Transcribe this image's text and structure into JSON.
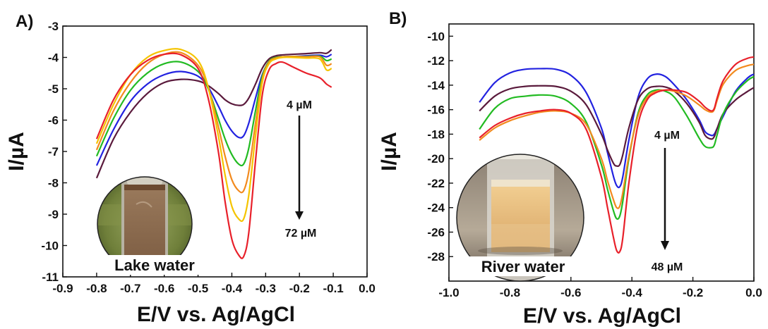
{
  "panels": [
    {
      "panel_label": "A)",
      "photo_label": "Lake water",
      "start_annotation": "4 µM",
      "end_annotation": "72 µM"
    },
    {
      "panel_label": "B)",
      "photo_label": "River water",
      "start_annotation": "4 µM",
      "end_annotation": "48 µM"
    }
  ],
  "chart_data": [
    {
      "type": "line",
      "title": "",
      "xlabel": "E/V vs. Ag/AgCl",
      "ylabel": "I/µA",
      "xlim": [
        -0.9,
        0.0
      ],
      "ylim": [
        -11,
        -3
      ],
      "xticks": [
        "-0.9",
        "-0.8",
        "-0.7",
        "-0.6",
        "-0.5",
        "-0.4",
        "-0.3",
        "-0.2",
        "-0.1",
        "0.0"
      ],
      "yticks": [
        "-3",
        "-4",
        "-5",
        "-6",
        "-7",
        "-8",
        "-9",
        "-10",
        "-11"
      ],
      "grid": false,
      "series": [
        {
          "color": "#5a1a3c",
          "x": [
            -0.8,
            -0.75,
            -0.7,
            -0.65,
            -0.6,
            -0.55,
            -0.5,
            -0.47,
            -0.44,
            -0.42,
            -0.4,
            -0.38,
            -0.365,
            -0.35,
            -0.33,
            -0.31,
            -0.29,
            -0.27,
            -0.25,
            -0.22,
            -0.18,
            -0.14,
            -0.12,
            -0.105
          ],
          "y": [
            -7.85,
            -6.6,
            -5.75,
            -5.15,
            -4.8,
            -4.7,
            -4.75,
            -4.9,
            -5.15,
            -5.35,
            -5.48,
            -5.53,
            -5.5,
            -5.3,
            -4.85,
            -4.35,
            -4.05,
            -3.95,
            -3.92,
            -3.9,
            -3.88,
            -3.85,
            -3.87,
            -3.75
          ]
        },
        {
          "color": "#2222e0",
          "x": [
            -0.8,
            -0.75,
            -0.7,
            -0.65,
            -0.6,
            -0.55,
            -0.5,
            -0.47,
            -0.44,
            -0.42,
            -0.4,
            -0.38,
            -0.365,
            -0.35,
            -0.33,
            -0.31,
            -0.29,
            -0.27,
            -0.25,
            -0.22,
            -0.18,
            -0.14,
            -0.12,
            -0.105
          ],
          "y": [
            -7.45,
            -6.3,
            -5.4,
            -4.85,
            -4.55,
            -4.45,
            -4.6,
            -4.95,
            -5.55,
            -6.0,
            -6.35,
            -6.55,
            -6.5,
            -6.1,
            -5.3,
            -4.55,
            -4.15,
            -4.02,
            -3.98,
            -3.97,
            -3.95,
            -3.93,
            -3.98,
            -3.9
          ]
        },
        {
          "color": "#22bb22",
          "x": [
            -0.8,
            -0.75,
            -0.7,
            -0.65,
            -0.6,
            -0.55,
            -0.5,
            -0.47,
            -0.44,
            -0.42,
            -0.4,
            -0.38,
            -0.365,
            -0.35,
            -0.33,
            -0.31,
            -0.29,
            -0.27,
            -0.25,
            -0.22,
            -0.18,
            -0.14,
            -0.12,
            -0.105
          ],
          "y": [
            -7.15,
            -5.95,
            -5.05,
            -4.5,
            -4.2,
            -4.15,
            -4.45,
            -5.0,
            -5.95,
            -6.6,
            -7.1,
            -7.4,
            -7.4,
            -6.9,
            -5.7,
            -4.6,
            -4.12,
            -4.0,
            -3.98,
            -3.97,
            -3.97,
            -3.96,
            -4.1,
            -4.05
          ]
        },
        {
          "color": "#f28a1e",
          "x": [
            -0.8,
            -0.75,
            -0.7,
            -0.65,
            -0.6,
            -0.55,
            -0.5,
            -0.47,
            -0.44,
            -0.42,
            -0.4,
            -0.38,
            -0.365,
            -0.35,
            -0.33,
            -0.31,
            -0.29,
            -0.27,
            -0.25,
            -0.22,
            -0.18,
            -0.14,
            -0.12,
            -0.105
          ],
          "y": [
            -6.95,
            -5.7,
            -4.8,
            -4.2,
            -3.9,
            -3.85,
            -4.25,
            -4.95,
            -6.2,
            -7.15,
            -7.9,
            -8.25,
            -8.25,
            -7.65,
            -6.1,
            -4.7,
            -4.15,
            -4.02,
            -3.98,
            -3.97,
            -3.98,
            -3.98,
            -4.25,
            -4.2
          ]
        },
        {
          "color": "#f5c400",
          "x": [
            -0.8,
            -0.75,
            -0.7,
            -0.65,
            -0.6,
            -0.55,
            -0.5,
            -0.47,
            -0.44,
            -0.42,
            -0.4,
            -0.38,
            -0.365,
            -0.35,
            -0.33,
            -0.31,
            -0.29,
            -0.27,
            -0.25,
            -0.22,
            -0.18,
            -0.14,
            -0.12,
            -0.105
          ],
          "y": [
            -6.75,
            -5.5,
            -4.55,
            -4.0,
            -3.78,
            -3.75,
            -4.1,
            -4.95,
            -6.5,
            -7.75,
            -8.75,
            -9.15,
            -9.15,
            -8.4,
            -6.5,
            -4.8,
            -4.2,
            -4.05,
            -4.0,
            -4.0,
            -4.02,
            -4.05,
            -4.4,
            -4.35
          ]
        },
        {
          "color": "#e8202a",
          "x": [
            -0.8,
            -0.75,
            -0.7,
            -0.65,
            -0.6,
            -0.55,
            -0.5,
            -0.47,
            -0.44,
            -0.42,
            -0.4,
            -0.38,
            -0.365,
            -0.35,
            -0.33,
            -0.31,
            -0.29,
            -0.27,
            -0.25,
            -0.22,
            -0.18,
            -0.14,
            -0.12,
            -0.105
          ],
          "y": [
            -6.6,
            -5.35,
            -4.55,
            -4.1,
            -3.9,
            -3.92,
            -4.35,
            -5.3,
            -7.0,
            -8.6,
            -9.8,
            -10.3,
            -10.35,
            -9.6,
            -7.3,
            -5.2,
            -4.4,
            -4.2,
            -4.15,
            -4.3,
            -4.5,
            -4.65,
            -4.85,
            -4.95
          ]
        }
      ]
    },
    {
      "type": "line",
      "title": "",
      "xlabel": "E/V vs. Ag/AgCl",
      "ylabel": "I/µA",
      "xlim": [
        -1.0,
        0.0
      ],
      "ylim": [
        -30,
        -9
      ],
      "xticks": [
        "-1.0",
        "-0.8",
        "-0.6",
        "-0.4",
        "-0.2",
        "0.0"
      ],
      "yticks": [
        "-10",
        "-12",
        "-14",
        "-16",
        "-18",
        "-20",
        "-22",
        "-24",
        "-26",
        "-28"
      ],
      "grid": false,
      "series": [
        {
          "color": "#2222e0",
          "x": [
            -0.9,
            -0.85,
            -0.8,
            -0.75,
            -0.7,
            -0.65,
            -0.6,
            -0.55,
            -0.5,
            -0.48,
            -0.46,
            -0.45,
            -0.44,
            -0.43,
            -0.41,
            -0.38,
            -0.35,
            -0.32,
            -0.29,
            -0.26,
            -0.22,
            -0.18,
            -0.16,
            -0.14,
            -0.13,
            -0.12,
            -0.1,
            -0.06,
            -0.02,
            0.0
          ],
          "y": [
            -15.4,
            -13.8,
            -13.0,
            -12.7,
            -12.65,
            -12.7,
            -13.2,
            -14.6,
            -17.5,
            -19.5,
            -21.5,
            -22.2,
            -22.3,
            -21.5,
            -18.5,
            -15.0,
            -13.5,
            -13.1,
            -13.3,
            -14.0,
            -15.2,
            -16.8,
            -17.8,
            -18.1,
            -18.0,
            -17.5,
            -16.5,
            -14.5,
            -13.4,
            -13.1
          ]
        },
        {
          "color": "#5a1a3c",
          "x": [
            -0.9,
            -0.85,
            -0.8,
            -0.75,
            -0.7,
            -0.65,
            -0.6,
            -0.55,
            -0.5,
            -0.48,
            -0.46,
            -0.45,
            -0.44,
            -0.43,
            -0.41,
            -0.38,
            -0.35,
            -0.32,
            -0.29,
            -0.26,
            -0.22,
            -0.18,
            -0.16,
            -0.14,
            -0.13,
            -0.12,
            -0.1,
            -0.06,
            -0.02,
            0.0
          ],
          "y": [
            -16.1,
            -14.9,
            -14.3,
            -14.1,
            -14.05,
            -14.1,
            -14.5,
            -15.6,
            -18.0,
            -19.3,
            -20.4,
            -20.6,
            -20.5,
            -19.7,
            -17.5,
            -15.2,
            -14.3,
            -14.1,
            -14.15,
            -14.5,
            -15.5,
            -17.0,
            -18.1,
            -18.4,
            -18.2,
            -17.5,
            -16.3,
            -15.2,
            -14.5,
            -14.2
          ]
        },
        {
          "color": "#22bb22",
          "x": [
            -0.9,
            -0.85,
            -0.8,
            -0.75,
            -0.7,
            -0.65,
            -0.6,
            -0.55,
            -0.5,
            -0.48,
            -0.46,
            -0.45,
            -0.44,
            -0.43,
            -0.41,
            -0.38,
            -0.35,
            -0.32,
            -0.29,
            -0.26,
            -0.22,
            -0.18,
            -0.16,
            -0.14,
            -0.13,
            -0.12,
            -0.1,
            -0.06,
            -0.02,
            0.0
          ],
          "y": [
            -17.6,
            -15.9,
            -15.1,
            -14.9,
            -14.8,
            -14.9,
            -15.5,
            -17.0,
            -20.5,
            -22.5,
            -24.3,
            -24.9,
            -24.7,
            -23.5,
            -20.0,
            -16.3,
            -14.8,
            -14.4,
            -14.5,
            -15.0,
            -16.5,
            -18.3,
            -19.0,
            -19.1,
            -18.9,
            -18.0,
            -16.3,
            -14.6,
            -13.6,
            -13.3
          ]
        },
        {
          "color": "#f28a1e",
          "x": [
            -0.9,
            -0.85,
            -0.8,
            -0.75,
            -0.7,
            -0.65,
            -0.6,
            -0.55,
            -0.5,
            -0.48,
            -0.46,
            -0.45,
            -0.44,
            -0.43,
            -0.41,
            -0.38,
            -0.35,
            -0.32,
            -0.29,
            -0.26,
            -0.22,
            -0.18,
            -0.16,
            -0.14,
            -0.13,
            -0.12,
            -0.1,
            -0.06,
            -0.02,
            0.0
          ],
          "y": [
            -18.5,
            -17.5,
            -16.9,
            -16.5,
            -16.2,
            -16.1,
            -16.3,
            -17.2,
            -20.0,
            -21.8,
            -23.4,
            -24.0,
            -23.9,
            -22.8,
            -19.8,
            -16.5,
            -15.0,
            -14.5,
            -14.4,
            -14.5,
            -14.9,
            -15.6,
            -16.0,
            -16.2,
            -16.0,
            -15.2,
            -13.9,
            -12.8,
            -12.4,
            -12.3
          ]
        },
        {
          "color": "#e8202a",
          "x": [
            -0.9,
            -0.85,
            -0.8,
            -0.75,
            -0.7,
            -0.65,
            -0.6,
            -0.55,
            -0.5,
            -0.48,
            -0.46,
            -0.45,
            -0.44,
            -0.43,
            -0.41,
            -0.38,
            -0.35,
            -0.32,
            -0.29,
            -0.26,
            -0.22,
            -0.18,
            -0.16,
            -0.14,
            -0.13,
            -0.12,
            -0.1,
            -0.06,
            -0.02,
            0.0
          ],
          "y": [
            -18.3,
            -17.3,
            -16.7,
            -16.3,
            -16.1,
            -16.0,
            -16.3,
            -17.6,
            -21.5,
            -24.0,
            -26.5,
            -27.5,
            -27.6,
            -26.5,
            -22.0,
            -17.2,
            -15.2,
            -14.6,
            -14.4,
            -14.4,
            -14.6,
            -15.3,
            -15.8,
            -16.1,
            -15.9,
            -15.0,
            -13.6,
            -12.3,
            -11.8,
            -11.7
          ]
        }
      ]
    }
  ]
}
